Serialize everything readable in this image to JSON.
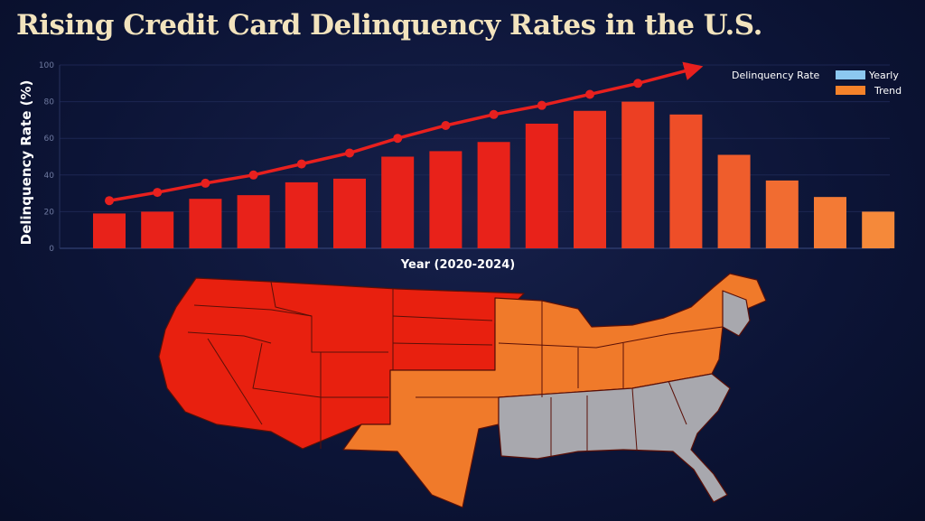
{
  "title": "Rising Credit Card Delinquency Rates in the U.S.",
  "chart_data": {
    "type": "bar",
    "title": "Rising Credit Card Delinquency Rates in the U.S.",
    "xlabel": "Year (2020-2024)",
    "ylabel": "Delinquency Rate (%)",
    "ylim": [
      0,
      100
    ],
    "yticks": [
      "0",
      "20",
      "40",
      "60",
      "80",
      "100"
    ],
    "grid": true,
    "legend": {
      "position": "top-right",
      "title": "Delinquency Rate",
      "entries": [
        {
          "label": "Yearly",
          "color": "#8cc8f0"
        },
        {
          "label": "Trend",
          "color": "#f5822a"
        }
      ]
    },
    "bars": [
      19,
      20,
      27,
      29,
      36,
      38,
      50,
      53,
      58,
      68,
      75,
      80,
      73,
      51,
      37,
      28,
      20
    ],
    "trend_line": [
      26,
      30.5,
      35.5,
      40,
      46,
      52,
      60,
      67,
      73,
      78,
      84,
      90
    ],
    "colors": {
      "bar_start": "#e8221a",
      "bar_end": "#f5893a",
      "trend": "#e8201e",
      "axis": "#3a4a80"
    }
  },
  "map": {
    "colors": {
      "high": "#e8200f",
      "medium": "#f07a2a",
      "low": "#a8a8ae",
      "border": "#3a0c0c"
    }
  }
}
